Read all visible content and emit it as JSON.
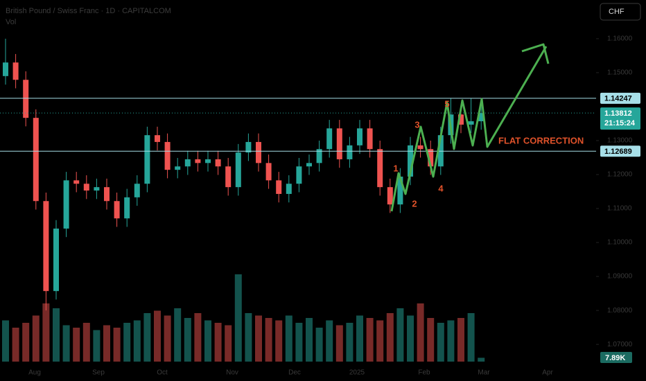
{
  "chart_data": {
    "type": "candlestick",
    "title": "British Pound / Swiss Franc · 1D · CAPITALCOM",
    "volume_title": "Vol",
    "currency": "CHF",
    "ylim": [
      1.0633,
      1.1714
    ],
    "yticks": [
      {
        "value": 1.16,
        "label": "1.16000"
      },
      {
        "value": 1.15,
        "label": "1.15000"
      },
      {
        "value": 1.13,
        "label": "1.13000"
      },
      {
        "value": 1.12,
        "label": "1.12000"
      },
      {
        "value": 1.11,
        "label": "1.11000"
      },
      {
        "value": 1.1,
        "label": "1.10000"
      },
      {
        "value": 1.09,
        "label": "1.09000"
      },
      {
        "value": 1.08,
        "label": "1.08000"
      },
      {
        "value": 1.07,
        "label": "1.07000"
      }
    ],
    "xaxis_labels": [
      "Aug",
      "Sep",
      "Oct",
      "Nov",
      "Dec",
      "2025",
      "Feb",
      "Mar",
      "Apr"
    ],
    "up_color": "#26a69a",
    "down_color": "#ef5350",
    "open": [
      1.149,
      1.153,
      1.1479,
      1.1367,
      1.1122,
      1.0857,
      1.1041,
      1.1183,
      1.1173,
      1.1153,
      1.1163,
      1.1122,
      1.1071,
      1.1133,
      1.1173,
      1.1316,
      1.1296,
      1.1214,
      1.1224,
      1.1245,
      1.1234,
      1.1245,
      1.1224,
      1.1163,
      1.1265,
      1.1296,
      1.1234,
      1.1183,
      1.1143,
      1.1173,
      1.1224,
      1.1234,
      1.1275,
      1.1336,
      1.1245,
      1.1286,
      1.1336,
      1.1275,
      1.1163,
      1.1112,
      1.1194,
      1.1286,
      1.1275,
      1.1224,
      1.1316,
      1.1377,
      1.1347,
      1.1357
    ],
    "high": [
      1.16,
      1.1555,
      1.1504,
      1.1392,
      1.1147,
      1.1066,
      1.1208,
      1.1208,
      1.1198,
      1.1188,
      1.1188,
      1.1147,
      1.1158,
      1.1198,
      1.1341,
      1.1341,
      1.1321,
      1.1249,
      1.127,
      1.127,
      1.127,
      1.127,
      1.1249,
      1.129,
      1.1321,
      1.1321,
      1.1259,
      1.1208,
      1.1198,
      1.1249,
      1.1259,
      1.13,
      1.1361,
      1.1361,
      1.1311,
      1.1361,
      1.1361,
      1.13,
      1.1188,
      1.1219,
      1.1311,
      1.1311,
      1.13,
      1.1341,
      1.1425,
      1.1402,
      1.1425,
      1.1406
    ],
    "low": [
      1.1465,
      1.1454,
      1.1342,
      1.1097,
      1.08,
      1.0832,
      1.1016,
      1.1148,
      1.1128,
      1.1128,
      1.1097,
      1.1046,
      1.1046,
      1.1108,
      1.1148,
      1.1271,
      1.1189,
      1.1189,
      1.1199,
      1.1209,
      1.1209,
      1.1199,
      1.1138,
      1.1138,
      1.124,
      1.1209,
      1.1158,
      1.1118,
      1.1118,
      1.1148,
      1.1199,
      1.1209,
      1.125,
      1.122,
      1.122,
      1.1261,
      1.125,
      1.1138,
      1.1087,
      1.1087,
      1.1169,
      1.125,
      1.1199,
      1.1199,
      1.1291,
      1.1322,
      1.1322,
      1.1332
    ],
    "close": [
      1.153,
      1.1479,
      1.1367,
      1.1122,
      1.0857,
      1.1041,
      1.1183,
      1.1173,
      1.1153,
      1.1163,
      1.1122,
      1.1071,
      1.1133,
      1.1173,
      1.1316,
      1.1296,
      1.1214,
      1.1224,
      1.1245,
      1.1234,
      1.1245,
      1.1224,
      1.1163,
      1.1265,
      1.1296,
      1.1234,
      1.1183,
      1.1143,
      1.1173,
      1.1224,
      1.1234,
      1.1275,
      1.1336,
      1.1245,
      1.1286,
      1.1336,
      1.1275,
      1.1163,
      1.1112,
      1.1194,
      1.1286,
      1.1275,
      1.1224,
      1.1316,
      1.1377,
      1.1347,
      1.1357,
      1.13812
    ],
    "volume": [
      85,
      70,
      80,
      95,
      120,
      110,
      75,
      70,
      80,
      65,
      75,
      70,
      80,
      85,
      100,
      105,
      95,
      110,
      90,
      100,
      85,
      80,
      75,
      180,
      100,
      95,
      90,
      85,
      95,
      80,
      90,
      70,
      85,
      75,
      80,
      95,
      90,
      85,
      100,
      110,
      95,
      120,
      90,
      80,
      85,
      90,
      100,
      7.89
    ],
    "volume_lim": [
      0,
      200
    ],
    "volume_label": "7.89K",
    "price_lines": [
      {
        "value": 1.14247,
        "label": "1.14247",
        "color": "#a7dfe8"
      },
      {
        "value": 1.12689,
        "label": "1.12689",
        "color": "#a7dfe8"
      }
    ],
    "current_price": {
      "label": "1.13812",
      "countdown": "21:15:24",
      "color": "#26a69a"
    },
    "annotations": [
      "1",
      "2",
      "3",
      "4",
      "5",
      "FLAT CORRECTION"
    ]
  }
}
